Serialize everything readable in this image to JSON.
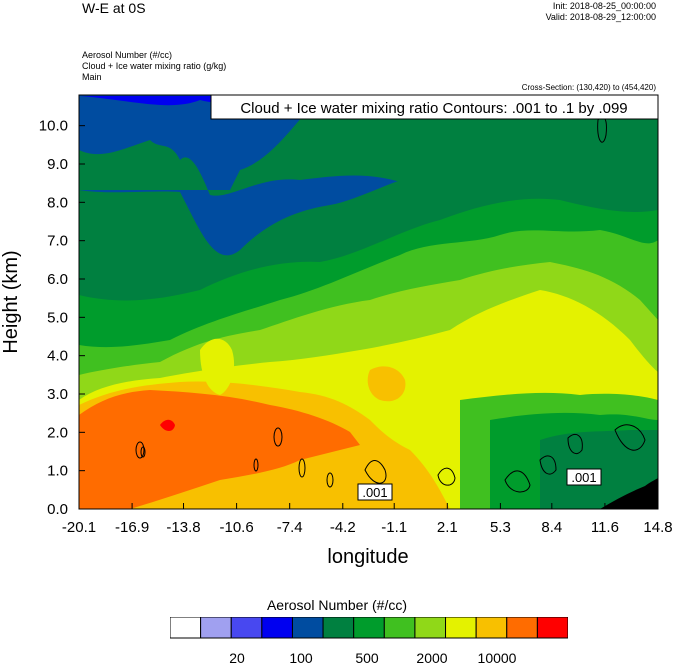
{
  "header": {
    "title": "W-E at 0S",
    "init": "Init: 2018-08-25_00:00:00",
    "valid": "Valid: 2018-08-29_12:00:00",
    "field1": "Aerosol Number   (#/cc)",
    "field2": "Cloud + Ice water mixing ratio   (g/kg)",
    "field3": "Main",
    "cross_section": "Cross-Section: (130,420) to (454,420)"
  },
  "chart_data": {
    "type": "heatmap",
    "title": "Cloud + Ice water mixing ratio Contours: .001 to .1 by .099",
    "xlabel": "longitude",
    "ylabel": "Height (km)",
    "x_ticks": [
      "-20.1",
      "-16.9",
      "-13.8",
      "-10.6",
      "-7.4",
      "-4.2",
      "-1.1",
      "2.1",
      "5.3",
      "8.4",
      "11.6",
      "14.8"
    ],
    "y_ticks": [
      "0.0",
      "1.0",
      "2.0",
      "3.0",
      "4.0",
      "5.0",
      "6.0",
      "7.0",
      "8.0",
      "9.0",
      "10.0"
    ],
    "xlim": [
      -20.1,
      14.8
    ],
    "ylim": [
      0,
      10.8
    ],
    "contour_labels": [
      ".001",
      ".001"
    ],
    "colorbar": {
      "title": "Aerosol Number  (#/cc)",
      "colors": [
        "#ffffff",
        "#a0a0f0",
        "#4848f0",
        "#0000f0",
        "#004ca0",
        "#008040",
        "#009c2c",
        "#40c020",
        "#90d818",
        "#e4f200",
        "#f8c000",
        "#ff6c00",
        "#ff0000"
      ],
      "labels": [
        "20",
        "100",
        "500",
        "2000",
        "10000"
      ]
    },
    "regions": [
      {
        "level": 4,
        "y_bottom": 7.8,
        "y_top": 10.8
      },
      {
        "level": 5,
        "y_bottom": 5.0,
        "y_top": 8.2
      },
      {
        "level": 6,
        "y_bottom": 3.2,
        "y_top": 6.5
      },
      {
        "level": 7,
        "y_bottom": 2.0,
        "y_top": 5.0
      },
      {
        "level": 8,
        "y_bottom": 2.0,
        "y_top": 3.5
      },
      {
        "level": 9,
        "y_bottom": 0.0,
        "y_top": 2.8
      },
      {
        "level": 10,
        "y_bottom": 0.0,
        "y_top": 2.5
      }
    ]
  }
}
